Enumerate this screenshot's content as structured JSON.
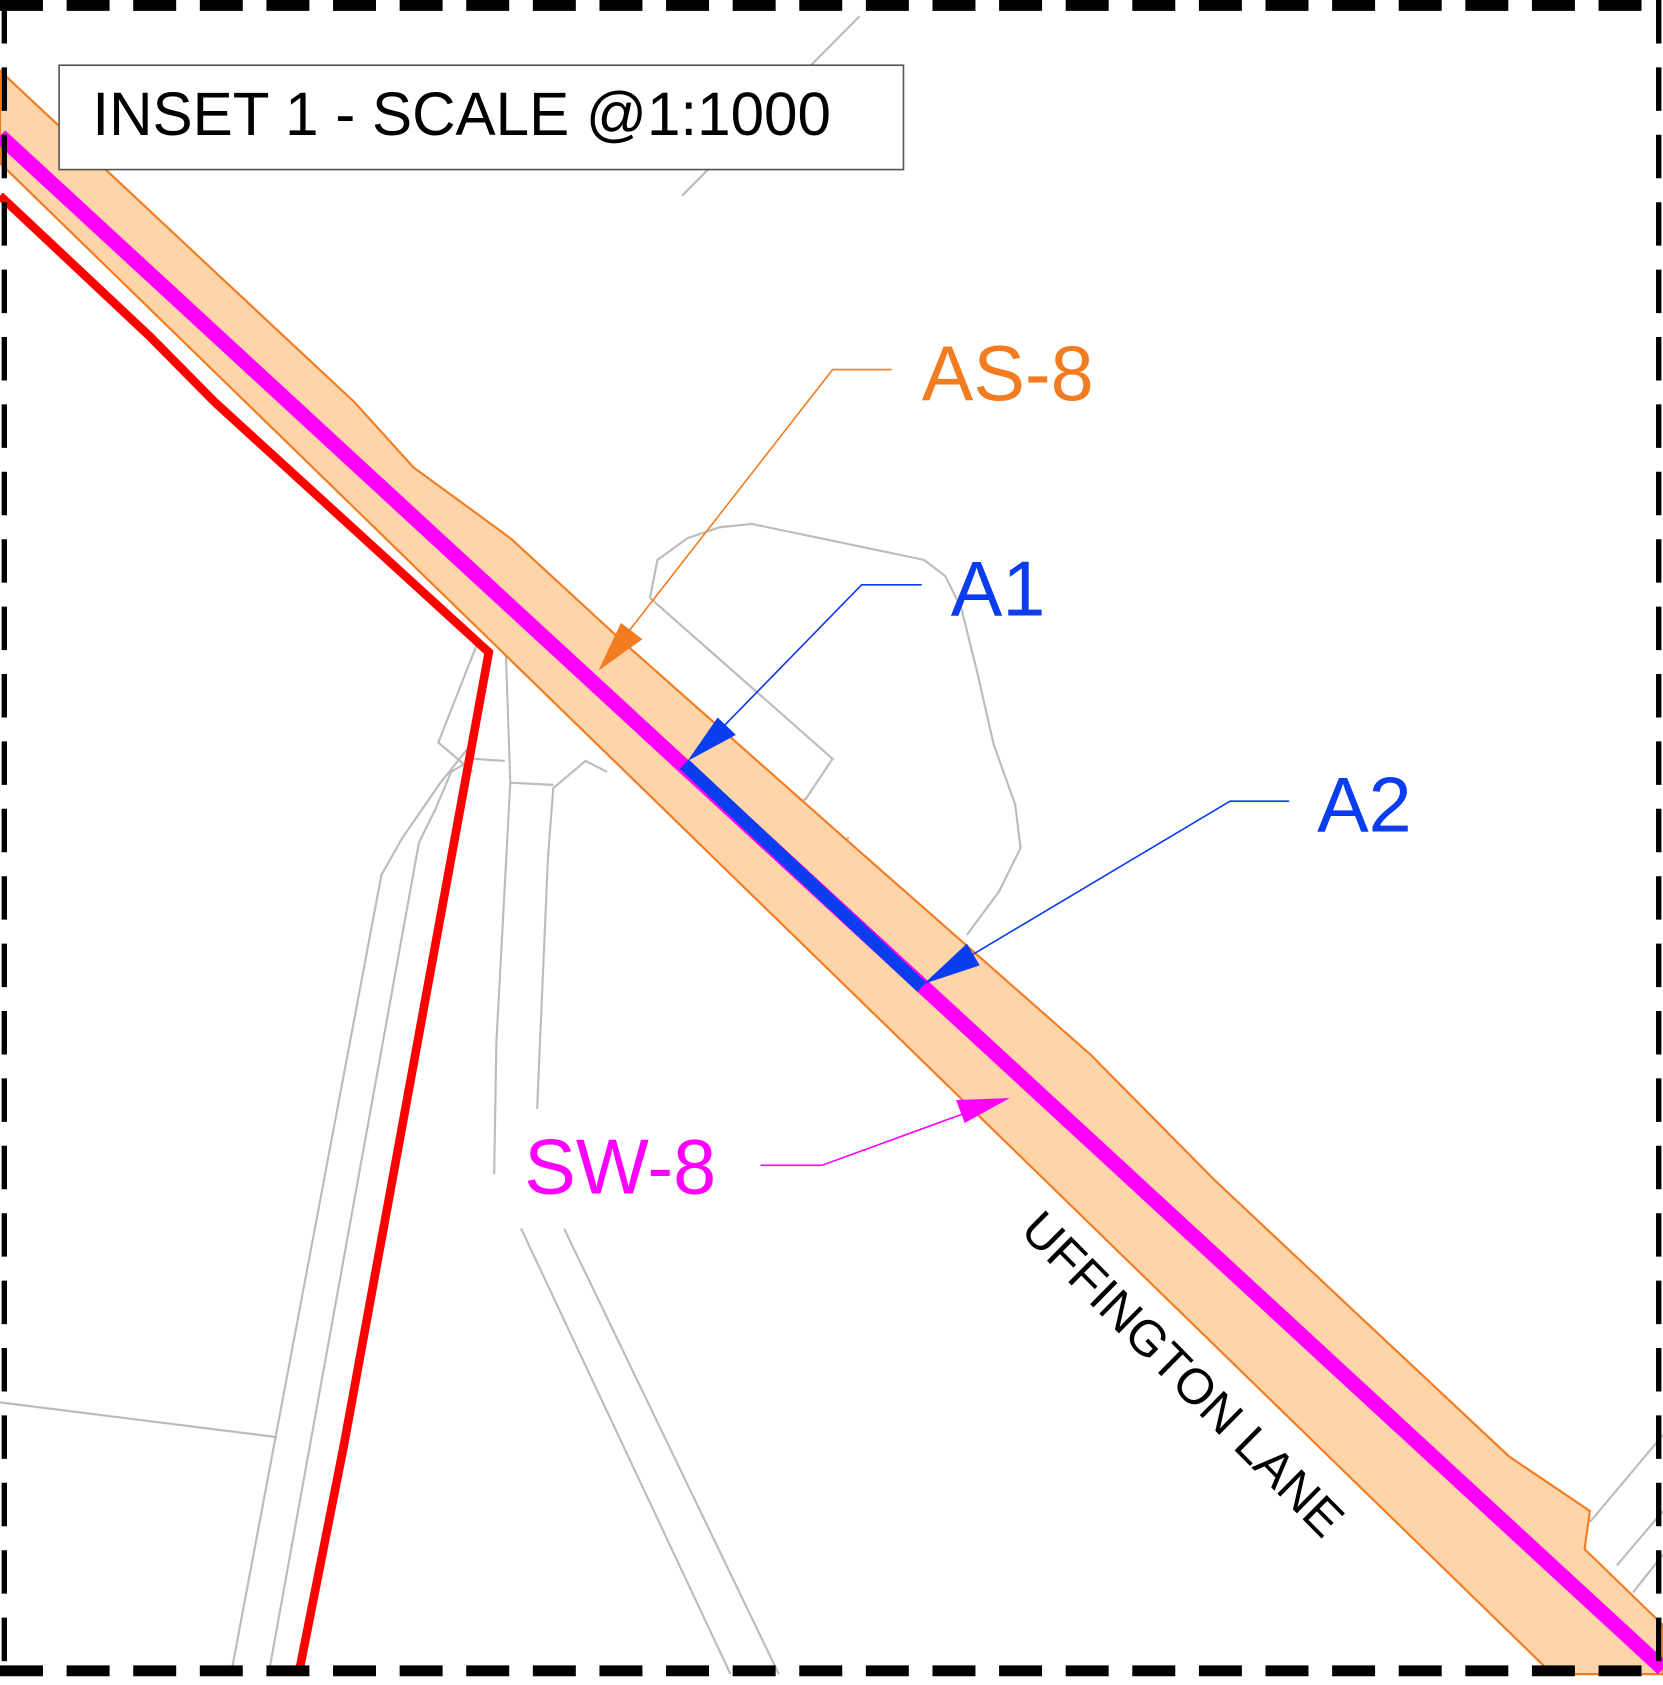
{
  "inset": {
    "title": "INSET 1 - SCALE @1:1000"
  },
  "labels": [
    {
      "text": "AS-8"
    },
    {
      "text": "A1"
    },
    {
      "text": "A2"
    },
    {
      "text": "SW-8"
    },
    {
      "text": "UFFINGTON LANE"
    }
  ]
}
